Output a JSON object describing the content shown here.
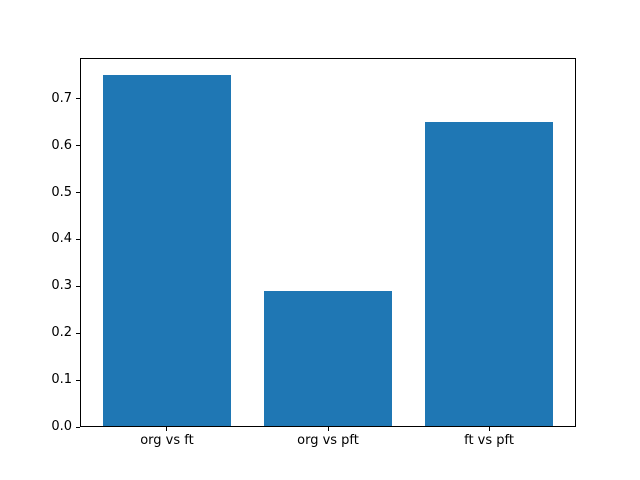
{
  "figure": {
    "background": "#ffffff",
    "frame_color": "#000000"
  },
  "chart_data": {
    "type": "bar",
    "categories": [
      "org vs ft",
      "org vs pft",
      "ft vs pft"
    ],
    "values": [
      0.75,
      0.29,
      0.65
    ],
    "series": [
      {
        "name": "",
        "values": [
          0.75,
          0.29,
          0.65
        ]
      }
    ],
    "title": "",
    "xlabel": "",
    "ylabel": "",
    "ylim": [
      0,
      0.7875
    ],
    "yticks": [
      0.0,
      0.1,
      0.2,
      0.3,
      0.4,
      0.5,
      0.6,
      0.7
    ],
    "ytick_labels": [
      "0.0",
      "0.1",
      "0.2",
      "0.3",
      "0.4",
      "0.5",
      "0.6",
      "0.7"
    ],
    "bar_color": "#1f77b4",
    "bar_width_fraction": 0.8,
    "x_units_span": 3.08,
    "x_left_offset": 0.54,
    "grid": false,
    "legend_position": "none"
  }
}
